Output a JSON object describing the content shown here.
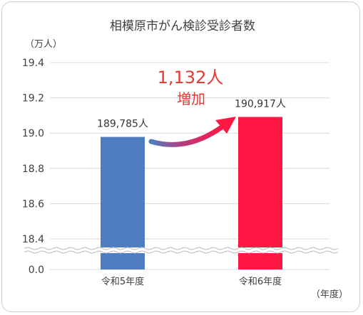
{
  "chart_data": {
    "type": "bar",
    "title": "相模原市がん検診受診者数",
    "ylabel": "（万人）",
    "xlabel": "（年度）",
    "categories": [
      "令和5年度",
      "令和6年度"
    ],
    "series": [
      {
        "values": [
          18.9785,
          19.0917
        ]
      }
    ],
    "value_labels": [
      "189,785人",
      "190,917人"
    ],
    "y_ticks": [
      "19.4",
      "19.2",
      "19.0",
      "18.8",
      "18.6",
      "18.4",
      "0.0"
    ],
    "ylim": [
      18.4,
      19.4
    ],
    "axis_break": true,
    "grid": true,
    "bar_colors": [
      "#4e7ec0",
      "#ff1744"
    ],
    "annotation": {
      "line1": "1,132人",
      "line2": "増加",
      "color": "#e53935"
    }
  }
}
